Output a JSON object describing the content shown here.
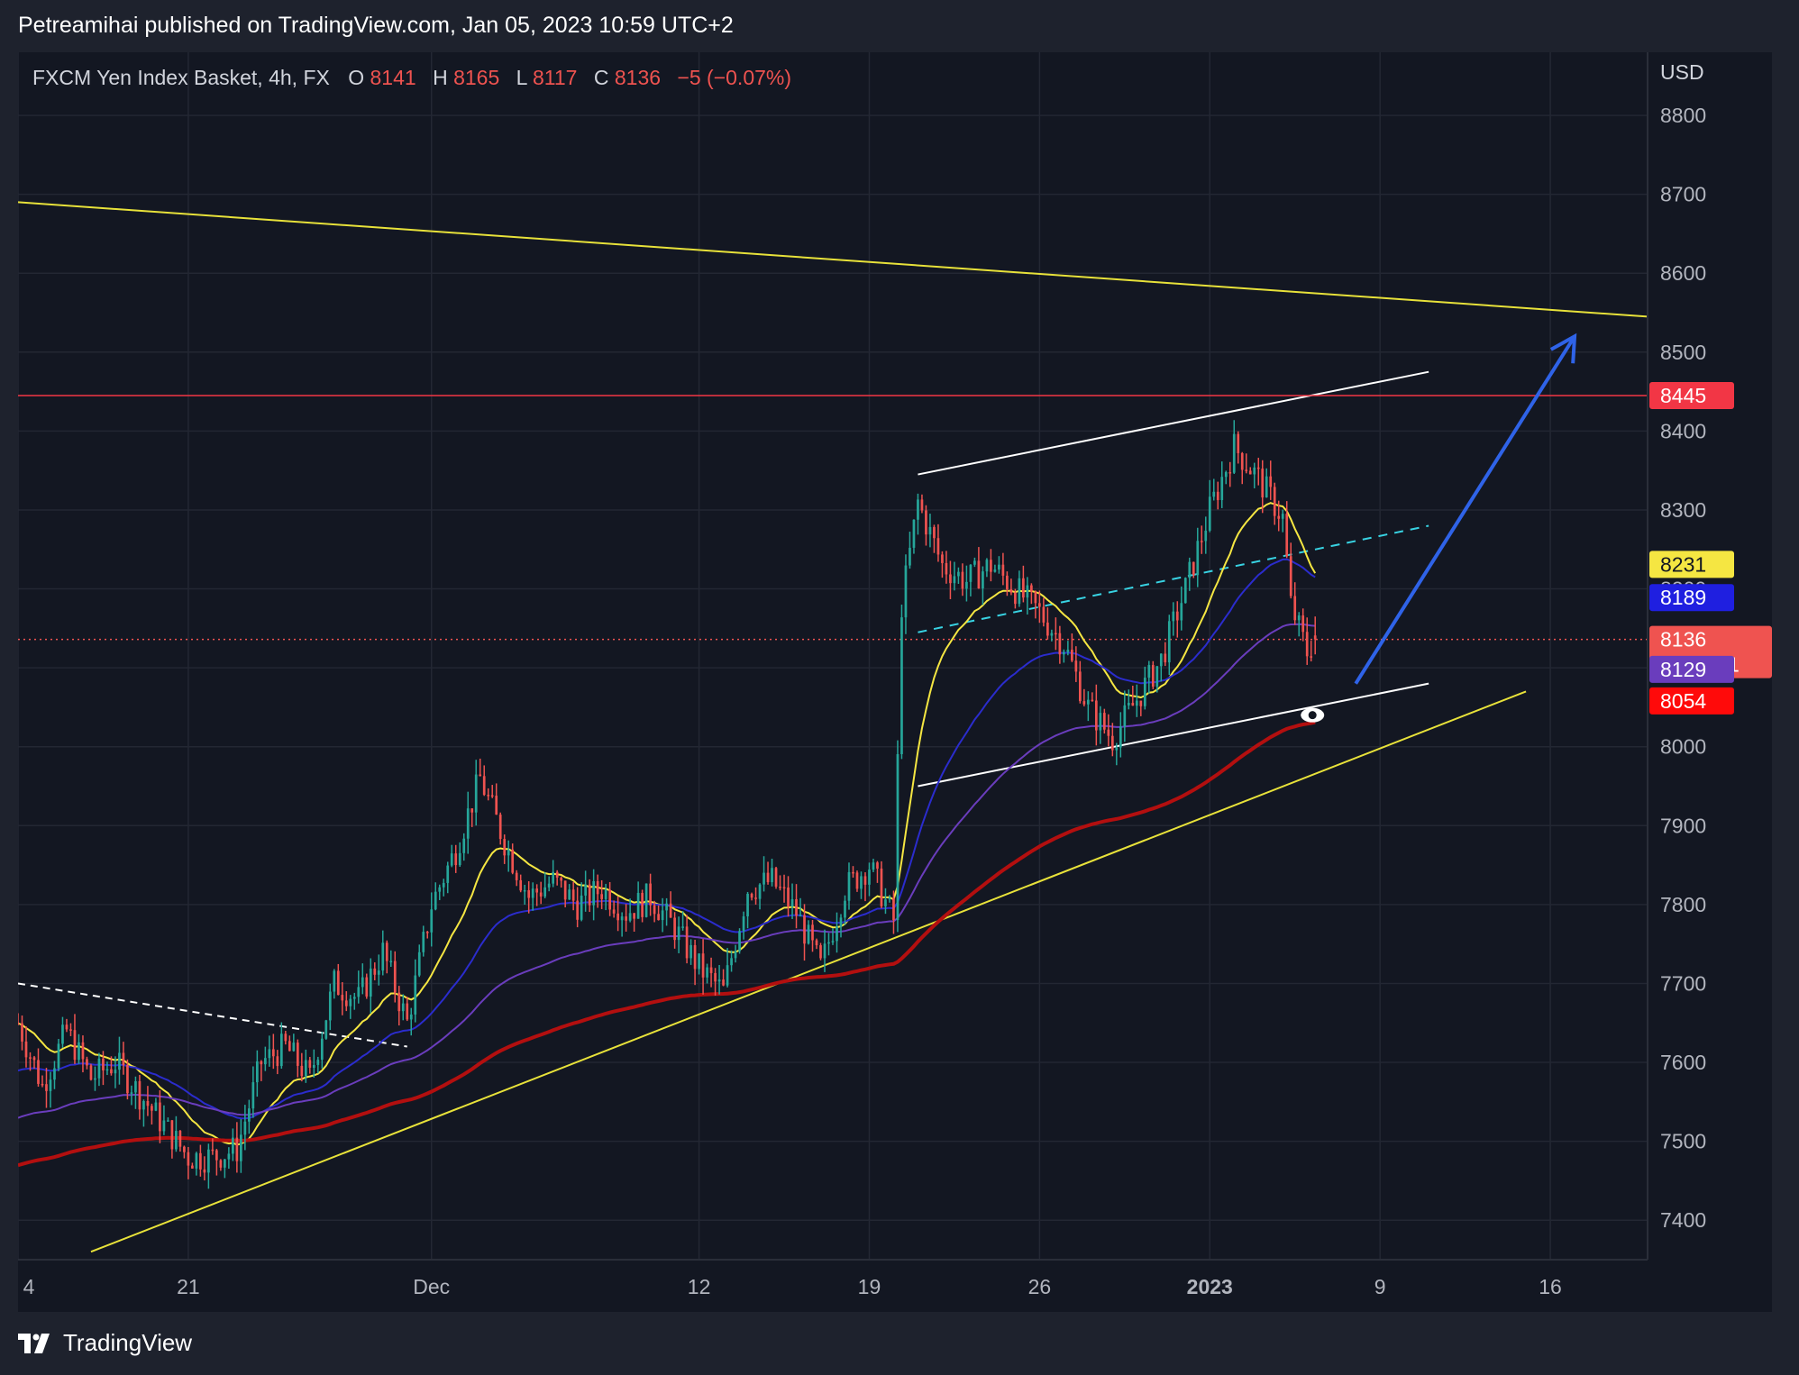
{
  "header": {
    "publisher": "Petreamihai published on TradingView.com, Jan 05, 2023 10:59 UTC+2"
  },
  "legend": {
    "symbol": "FXCM Yen Index Basket, 4h, FX",
    "o_label": "O",
    "o_value": "8141",
    "h_label": "H",
    "h_value": "8165",
    "l_label": "L",
    "l_value": "8117",
    "c_label": "C",
    "c_value": "8136",
    "change": "−5 (−0.07%)"
  },
  "footer": {
    "brand": "TradingView",
    "logo_icon": "tradingview-logo-icon"
  },
  "colors": {
    "background": "#131722",
    "grid": "#232733",
    "up": "#26a69a",
    "down": "#ef5350",
    "ema_fast": "#f5e642",
    "ema_mid": "#2b2ccd",
    "ema_slow": "#6a3dbd",
    "ema_long": "#b30f0f",
    "trend_yellow": "#e8e23a",
    "resistance": "#f23645",
    "arrow": "#2f63e8",
    "channel": "#ffffff",
    "dashed_mid": "#38d3e3"
  },
  "chart_data": {
    "type": "candlestick",
    "currency": "USD",
    "timeframe": "4h",
    "x_labels": [
      "4",
      "21",
      "Dec",
      "12",
      "19",
      "26",
      "2023",
      "9",
      "16"
    ],
    "y_ticks": [
      7400,
      7500,
      7600,
      7700,
      7800,
      7900,
      8000,
      8100,
      8200,
      8300,
      8400,
      8500,
      8600,
      8700,
      8800
    ],
    "ylim": [
      7350,
      8880
    ],
    "x_dates": [
      "2022-11-14",
      "2022-11-21",
      "2022-12-01",
      "2022-12-12",
      "2022-12-19",
      "2022-12-26",
      "2023-01-02",
      "2023-01-09",
      "2023-01-16"
    ],
    "xlim": [
      "2022-11-14",
      "2023-01-20"
    ],
    "ohlc_last": {
      "open": 8141,
      "high": 8165,
      "low": 8117,
      "close": 8136
    },
    "price_path": [
      [
        "2022-11-14",
        7650
      ],
      [
        "2022-11-15",
        7570
      ],
      [
        "2022-11-16",
        7640
      ],
      [
        "2022-11-17",
        7580
      ],
      [
        "2022-11-18",
        7600
      ],
      [
        "2022-11-19",
        7560
      ],
      [
        "2022-11-21",
        7480
      ],
      [
        "2022-11-22",
        7480
      ],
      [
        "2022-11-23",
        7490
      ],
      [
        "2022-11-24",
        7600
      ],
      [
        "2022-11-25",
        7620
      ],
      [
        "2022-11-26",
        7580
      ],
      [
        "2022-11-27",
        7700
      ],
      [
        "2022-11-28",
        7680
      ],
      [
        "2022-11-29",
        7740
      ],
      [
        "2022-11-30",
        7650
      ],
      [
        "2022-12-01",
        7800
      ],
      [
        "2022-12-02",
        7870
      ],
      [
        "2022-12-03",
        7960
      ],
      [
        "2022-12-04",
        7880
      ],
      [
        "2022-12-05",
        7810
      ],
      [
        "2022-12-06",
        7830
      ],
      [
        "2022-12-07",
        7800
      ],
      [
        "2022-12-08",
        7820
      ],
      [
        "2022-12-09",
        7790
      ],
      [
        "2022-12-10",
        7810
      ],
      [
        "2022-12-11",
        7770
      ],
      [
        "2022-12-12",
        7720
      ],
      [
        "2022-12-13",
        7690
      ],
      [
        "2022-12-14",
        7820
      ],
      [
        "2022-12-15",
        7830
      ],
      [
        "2022-12-16",
        7790
      ],
      [
        "2022-12-17",
        7720
      ],
      [
        "2022-12-18",
        7820
      ],
      [
        "2022-12-19",
        7850
      ],
      [
        "2022-12-20",
        7780
      ],
      [
        "2022-12-20",
        8180
      ],
      [
        "2022-12-21",
        8310
      ],
      [
        "2022-12-22",
        8230
      ],
      [
        "2022-12-23",
        8210
      ],
      [
        "2022-12-24",
        8230
      ],
      [
        "2022-12-25",
        8200
      ],
      [
        "2022-12-26",
        8170
      ],
      [
        "2022-12-27",
        8130
      ],
      [
        "2022-12-28",
        8050
      ],
      [
        "2022-12-29",
        8010
      ],
      [
        "2022-12-30",
        8060
      ],
      [
        "2022-12-31",
        8110
      ],
      [
        "2023-01-01",
        8200
      ],
      [
        "2023-01-02",
        8300
      ],
      [
        "2023-01-03",
        8380
      ],
      [
        "2023-01-04",
        8340
      ],
      [
        "2023-01-05",
        8290
      ],
      [
        "2023-01-05",
        8180
      ],
      [
        "2023-01-06",
        8120
      ],
      [
        "2023-01-06",
        8136
      ]
    ],
    "emas": [
      {
        "label": "8231",
        "color": "#f5e642"
      },
      {
        "label": "8189",
        "color": "#1f1fe0"
      },
      {
        "label": "8129",
        "color": "#6a3dbd"
      },
      {
        "label": "8054",
        "color": "#ff0a0a"
      }
    ],
    "last_price_label": "8136",
    "countdown_label": "01:00:11",
    "resistance_label": "8445",
    "annotations": {
      "resistance_level": 8445,
      "projection_arrow": "blue arrow pointing up toward 8520",
      "eye_marker_icon": "eye-icon"
    }
  }
}
